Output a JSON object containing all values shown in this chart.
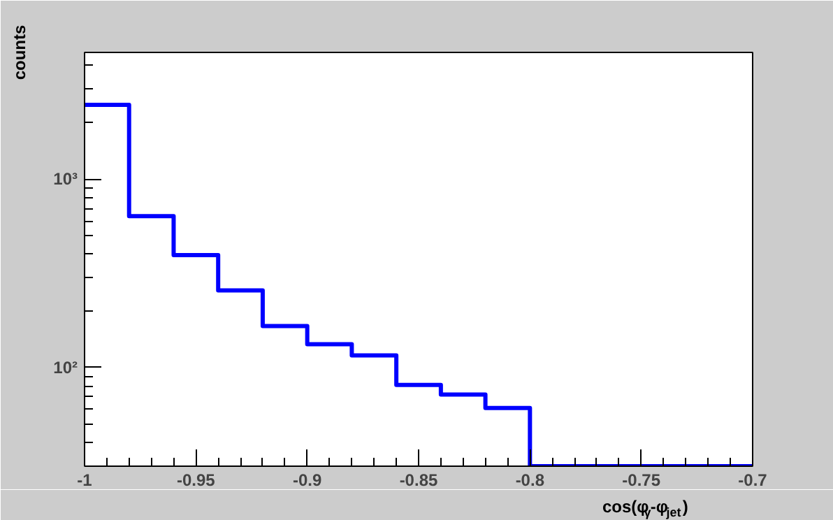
{
  "chart_data": {
    "type": "histogram",
    "xlabel": "cos(φ$_{γ}$-φ$_{jet}$)",
    "ylabel": "counts",
    "bins": [
      -1,
      -0.98,
      -0.96,
      -0.94,
      -0.92,
      -0.9,
      -0.88,
      -0.86,
      -0.84,
      -0.82,
      -0.8,
      -0.78,
      -0.76,
      -0.74,
      -0.72,
      -0.7
    ],
    "values": [
      2480,
      636,
      395,
      257,
      166,
      133,
      116,
      81,
      72,
      61,
      null,
      null,
      null,
      null,
      null
    ],
    "color": "#0000ff",
    "log": "y",
    "grid": false,
    "xlim": [
      -1,
      -0.7
    ],
    "xticks": [
      {
        "value": -1,
        "label": "-1"
      },
      -0.95,
      -0.9,
      -0.85,
      -0.8,
      -0.75,
      -0.7
    ],
    "ylim": [
      30,
      4700
    ],
    "yticks": [
      {
        "value": 100,
        "label": "10²"
      },
      {
        "value": 1000,
        "label": "10³"
      }
    ]
  }
}
